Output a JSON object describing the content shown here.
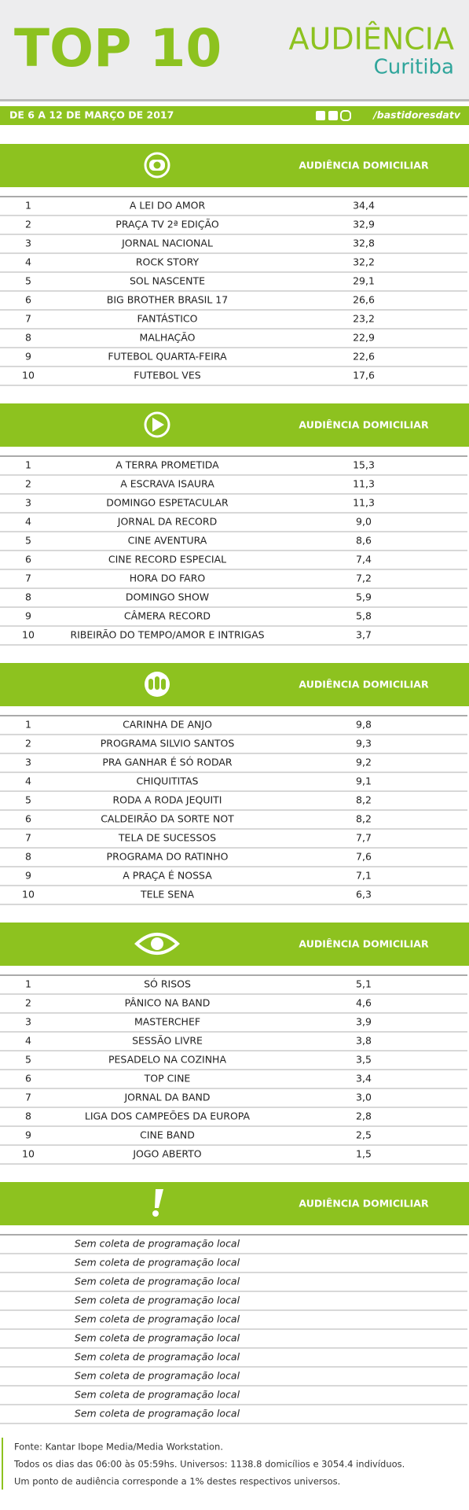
{
  "header": {
    "title": "TOP 10",
    "brand": "AUDIÊNCIA",
    "city": "Curitiba",
    "period": "DE 6 A 12 DE MARÇO DE 2017",
    "social": "/bastidoresdatv"
  },
  "sections": [
    {
      "column_header": "AUDIÊNCIA DOMICILIAR",
      "rows": [
        [
          1,
          "A LEI DO AMOR",
          "34,4"
        ],
        [
          2,
          "PRAÇA TV 2ª EDIÇÃO",
          "32,9"
        ],
        [
          3,
          "JORNAL NACIONAL",
          "32,8"
        ],
        [
          4,
          "ROCK STORY",
          "32,2"
        ],
        [
          5,
          "SOL NASCENTE",
          "29,1"
        ],
        [
          6,
          "BIG BROTHER BRASIL 17",
          "26,6"
        ],
        [
          7,
          "FANTÁSTICO",
          "23,2"
        ],
        [
          8,
          "MALHAÇÃO",
          "22,9"
        ],
        [
          9,
          "FUTEBOL QUARTA-FEIRA",
          "22,6"
        ],
        [
          10,
          "FUTEBOL VES",
          "17,6"
        ]
      ]
    },
    {
      "column_header": "AUDIÊNCIA DOMICILIAR",
      "rows": [
        [
          1,
          "A TERRA PROMETIDA",
          "15,3"
        ],
        [
          2,
          "A ESCRAVA ISAURA",
          "11,3"
        ],
        [
          3,
          "DOMINGO ESPETACULAR",
          "11,3"
        ],
        [
          4,
          "JORNAL DA RECORD",
          "9,0"
        ],
        [
          5,
          "CINE AVENTURA",
          "8,6"
        ],
        [
          6,
          "CINE RECORD ESPECIAL",
          "7,4"
        ],
        [
          7,
          "HORA DO FARO",
          "7,2"
        ],
        [
          8,
          "DOMINGO SHOW",
          "5,9"
        ],
        [
          9,
          "CÂMERA RECORD",
          "5,8"
        ],
        [
          10,
          "RIBEIRÃO DO TEMPO/AMOR E INTRIGAS",
          "3,7"
        ]
      ]
    },
    {
      "column_header": "AUDIÊNCIA DOMICILIAR",
      "rows": [
        [
          1,
          "CARINHA DE ANJO",
          "9,8"
        ],
        [
          2,
          "PROGRAMA SILVIO SANTOS",
          "9,3"
        ],
        [
          3,
          "PRA GANHAR É SÓ RODAR",
          "9,2"
        ],
        [
          4,
          "CHIQUITITAS",
          "9,1"
        ],
        [
          5,
          "RODA A RODA JEQUITI",
          "8,2"
        ],
        [
          6,
          "CALDEIRÃO DA SORTE NOT",
          "8,2"
        ],
        [
          7,
          "TELA DE SUCESSOS",
          "7,7"
        ],
        [
          8,
          "PROGRAMA DO RATINHO",
          "7,6"
        ],
        [
          9,
          "A PRAÇA É NOSSA",
          "7,1"
        ],
        [
          10,
          "TELE SENA",
          "6,3"
        ]
      ]
    },
    {
      "column_header": "AUDIÊNCIA DOMICILIAR",
      "rows": [
        [
          1,
          "SÓ RISOS",
          "5,1"
        ],
        [
          2,
          "PÂNICO NA BAND",
          "4,6"
        ],
        [
          3,
          "MASTERCHEF",
          "3,9"
        ],
        [
          4,
          "SESSÃO LIVRE",
          "3,8"
        ],
        [
          5,
          "PESADELO NA COZINHA",
          "3,5"
        ],
        [
          6,
          "TOP CINE",
          "3,4"
        ],
        [
          7,
          "JORNAL DA BAND",
          "3,0"
        ],
        [
          8,
          "LIGA DOS CAMPEÕES DA EUROPA",
          "2,8"
        ],
        [
          9,
          "CINE BAND",
          "2,5"
        ],
        [
          10,
          "JOGO ABERTO",
          "1,5"
        ]
      ]
    },
    {
      "column_header": "AUDIÊNCIA DOMICILIAR",
      "rows": [
        [
          "Sem coleta de programação local"
        ],
        [
          "Sem coleta de programação local"
        ],
        [
          "Sem coleta de programação local"
        ],
        [
          "Sem coleta de programação local"
        ],
        [
          "Sem coleta de programação local"
        ],
        [
          "Sem coleta de programação local"
        ],
        [
          "Sem coleta de programação local"
        ],
        [
          "Sem coleta de programação local"
        ],
        [
          "Sem coleta de programação local"
        ],
        [
          "Sem coleta de programação local"
        ]
      ]
    }
  ],
  "footer": [
    "Fonte: Kantar Ibope Media/Media Workstation.",
    "Todos os dias das 06:00 às 05:59hs. Universos: 1138.8 domicílios e 3054.4 indivíduos.",
    "Um ponto de audiência corresponde a 1% destes respectivos universos."
  ]
}
